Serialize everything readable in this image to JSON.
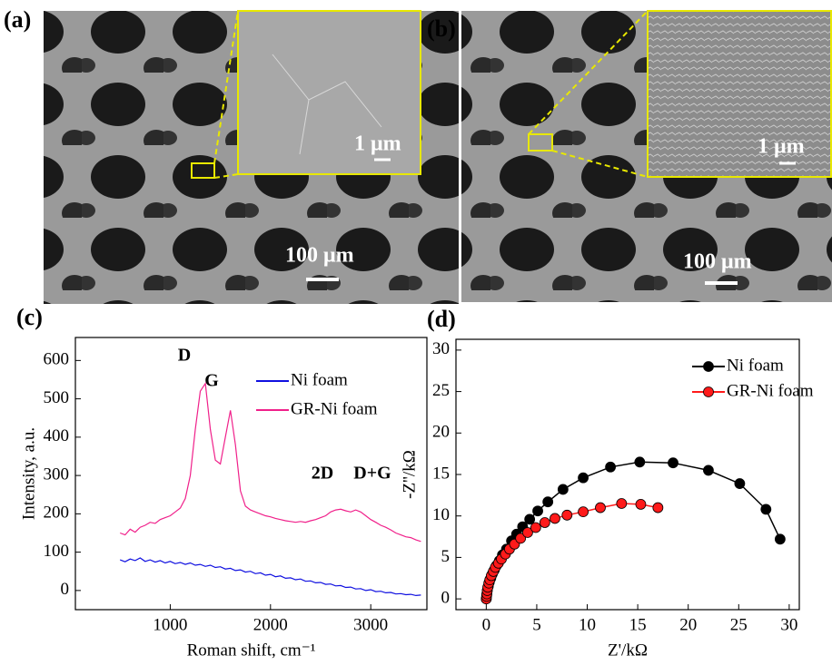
{
  "panels": [
    {
      "label": "(a)",
      "inset_scale": "1 μm",
      "scale": "100 μm"
    },
    {
      "label": "(b)",
      "inset_scale": "1 μm",
      "scale": "100 μm"
    }
  ],
  "chart_data": [
    {
      "type": "line",
      "label": "(c)",
      "xlabel": "Roman shift, cm⁻¹",
      "ylabel": "Intensity, a.u.",
      "annotations": [
        "D",
        "G",
        "2D",
        "D+G"
      ],
      "x": [
        500,
        550,
        600,
        650,
        700,
        750,
        800,
        850,
        900,
        950,
        1000,
        1050,
        1100,
        1150,
        1200,
        1250,
        1300,
        1350,
        1400,
        1450,
        1500,
        1550,
        1600,
        1650,
        1700,
        1750,
        1800,
        1850,
        1900,
        1950,
        2000,
        2050,
        2100,
        2150,
        2200,
        2250,
        2300,
        2350,
        2400,
        2450,
        2500,
        2550,
        2600,
        2650,
        2700,
        2750,
        2800,
        2850,
        2900,
        2950,
        3000,
        3050,
        3100,
        3150,
        3200,
        3250,
        3300,
        3350,
        3400,
        3450,
        3500
      ],
      "series": [
        {
          "name": "Ni foam",
          "color": "#1010e0",
          "values": [
            80,
            75,
            82,
            78,
            85,
            76,
            80,
            74,
            78,
            72,
            76,
            70,
            73,
            68,
            72,
            66,
            68,
            63,
            66,
            60,
            62,
            56,
            58,
            52,
            54,
            48,
            50,
            44,
            46,
            40,
            42,
            36,
            38,
            32,
            33,
            28,
            30,
            24,
            25,
            20,
            21,
            16,
            17,
            12,
            13,
            8,
            9,
            4,
            5,
            0,
            2,
            -3,
            -2,
            -6,
            -5,
            -9,
            -8,
            -11,
            -10,
            -13,
            -12
          ]
        },
        {
          "name": "GR-Ni foam",
          "color": "#f0208a",
          "values": [
            150,
            145,
            160,
            152,
            165,
            170,
            178,
            175,
            185,
            190,
            195,
            205,
            215,
            240,
            300,
            420,
            520,
            540,
            420,
            340,
            330,
            400,
            470,
            380,
            260,
            220,
            210,
            205,
            200,
            195,
            192,
            188,
            185,
            182,
            180,
            178,
            180,
            178,
            182,
            185,
            190,
            195,
            205,
            210,
            212,
            208,
            205,
            210,
            205,
            195,
            185,
            178,
            170,
            165,
            158,
            150,
            145,
            140,
            138,
            132,
            128
          ]
        }
      ],
      "xlim": [
        54,
        3560
      ],
      "xticks": [
        1000,
        2000,
        3000
      ],
      "ylim": [
        -50,
        660
      ],
      "yticks": [
        0,
        100,
        200,
        300,
        400,
        500,
        600
      ],
      "legend": "top-right"
    },
    {
      "type": "scatter-line",
      "label": "(d)",
      "xlabel": "Z'/kΩ",
      "ylabel": "-Z''/kΩ",
      "series": [
        {
          "name": "Ni foam",
          "color": "#000000",
          "x": [
            0,
            0.05,
            0.1,
            0.2,
            0.3,
            0.45,
            0.6,
            0.8,
            1,
            1.3,
            1.6,
            2,
            2.5,
            3,
            3.6,
            4.3,
            5.1,
            6.1,
            7.6,
            9.6,
            12.3,
            15.2,
            18.5,
            22,
            25.1,
            27.7,
            29.1
          ],
          "values": [
            0,
            0.5,
            1,
            1.5,
            2,
            2.5,
            3,
            3.5,
            4,
            4.6,
            5.3,
            6,
            7,
            7.8,
            8.7,
            9.6,
            10.6,
            11.7,
            13.2,
            14.6,
            15.9,
            16.5,
            16.4,
            15.5,
            13.9,
            10.8,
            7.2
          ]
        },
        {
          "name": "GR-Ni foam",
          "color": "#ff1a1a",
          "x": [
            0,
            0.03,
            0.06,
            0.1,
            0.15,
            0.25,
            0.35,
            0.5,
            0.7,
            0.9,
            1.2,
            1.5,
            1.9,
            2.3,
            2.8,
            3.4,
            4.1,
            4.9,
            5.8,
            6.8,
            8,
            9.6,
            11.3,
            13.4,
            15.3,
            17
          ],
          "values": [
            0,
            0.3,
            0.6,
            1,
            1.4,
            1.9,
            2.3,
            2.8,
            3.3,
            3.8,
            4.3,
            4.8,
            5.4,
            6,
            6.6,
            7.3,
            8,
            8.6,
            9.2,
            9.7,
            10.1,
            10.5,
            11,
            11.5,
            11.4,
            11
          ]
        }
      ],
      "xlim": [
        -3,
        31
      ],
      "xticks": [
        0,
        5,
        10,
        15,
        20,
        25,
        30
      ],
      "ylim": [
        -1.3,
        31.3
      ],
      "yticks": [
        0,
        5,
        10,
        15,
        20,
        25,
        30
      ],
      "legend": "top-right"
    }
  ]
}
